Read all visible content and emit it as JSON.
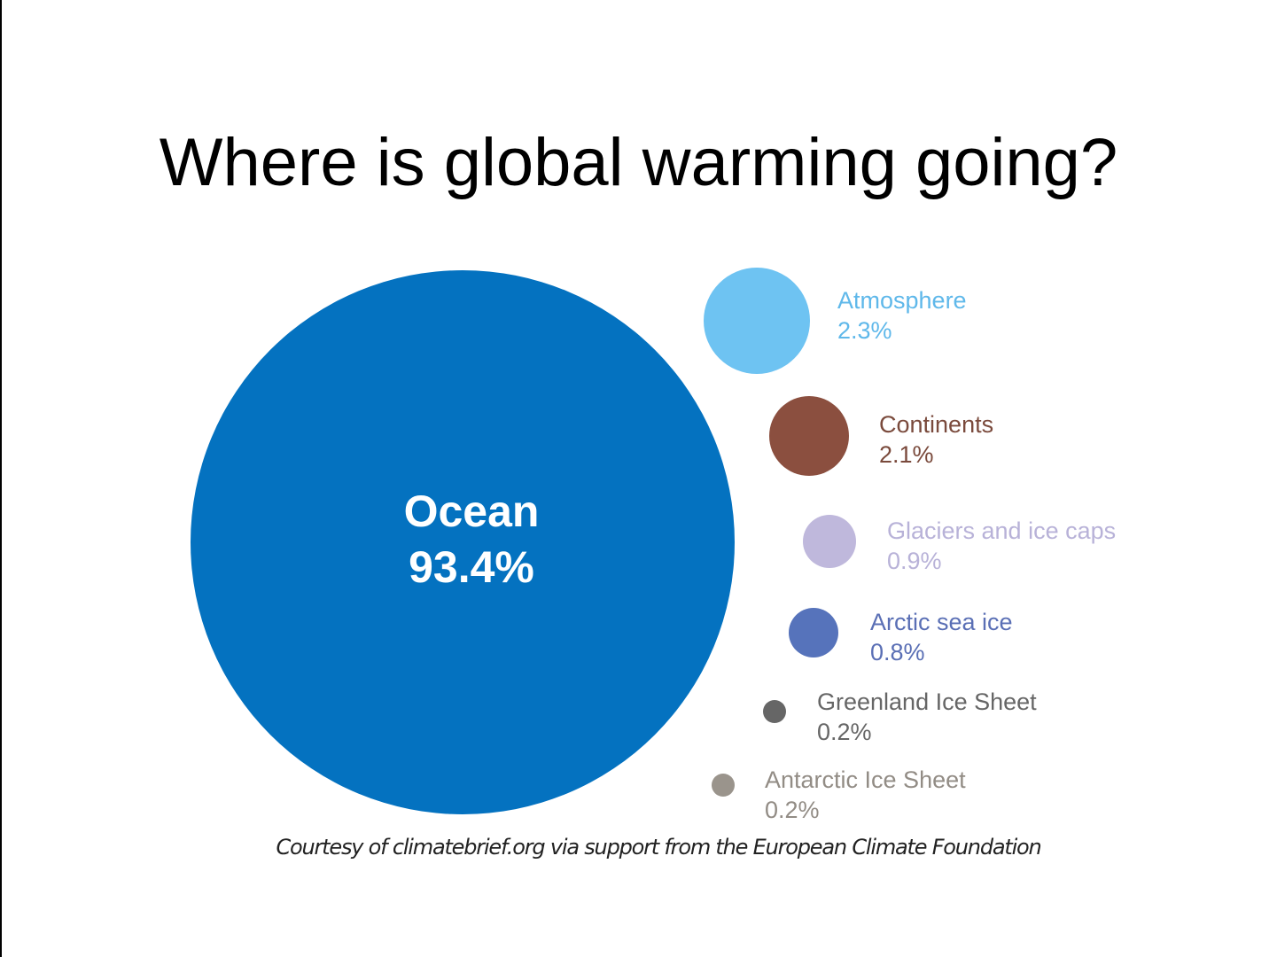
{
  "title": "Where is global warming going?",
  "chart_data": {
    "type": "bubble",
    "title": "Where is global warming going?",
    "unit": "%",
    "series": [
      {
        "name": "Ocean",
        "value": 93.4,
        "label": "93.4%",
        "color": "#0472c0",
        "text_color": "#ffffff"
      },
      {
        "name": "Atmosphere",
        "value": 2.3,
        "label": "2.3%",
        "color": "#6ec3f2",
        "text_color": "#5fb8ea"
      },
      {
        "name": "Continents",
        "value": 2.1,
        "label": "2.1%",
        "color": "#8b4f3f",
        "text_color": "#7a4a3c"
      },
      {
        "name": "Glaciers and ice caps",
        "value": 0.9,
        "label": "0.9%",
        "color": "#bfb8dc",
        "text_color": "#b8b2d8"
      },
      {
        "name": "Arctic sea ice",
        "value": 0.8,
        "label": "0.8%",
        "color": "#5673bb",
        "text_color": "#5a6fb5"
      },
      {
        "name": "Greenland Ice Sheet",
        "value": 0.2,
        "label": "0.2%",
        "color": "#666666",
        "text_color": "#666666"
      },
      {
        "name": "Antarctic Ice Sheet",
        "value": 0.2,
        "label": "0.2%",
        "color": "#9a948c",
        "text_color": "#928c85"
      }
    ]
  },
  "credit": "Courtesy of climatebrief.org via support from the European Climate Foundation"
}
